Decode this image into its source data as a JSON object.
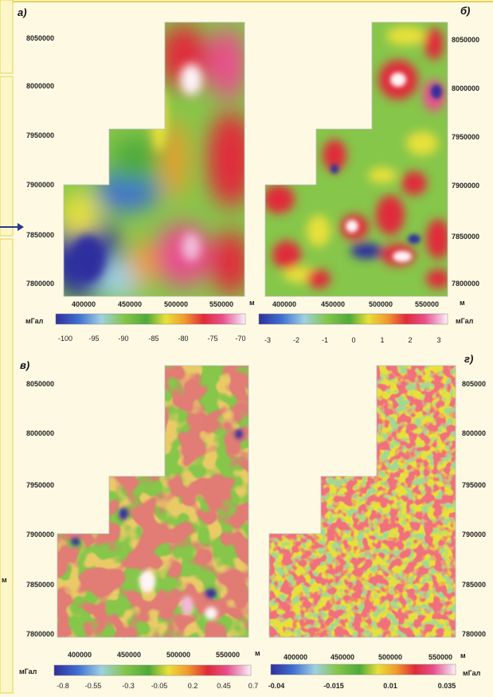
{
  "panels": [
    {
      "id": "a",
      "letter": "а)",
      "y_ticks": [
        "8050000",
        "8000000",
        "7950000",
        "7900000",
        "7850000",
        "7800000"
      ],
      "x_ticks": [
        "400000",
        "450000",
        "500000",
        "550000"
      ],
      "x_unit": "м",
      "colorbar_label": "мГал",
      "colorbar_ticks": [
        "-100",
        "-95",
        "-90",
        "-85",
        "-80",
        "-75",
        "-70"
      ]
    },
    {
      "id": "b",
      "letter": "б)",
      "y_ticks": [
        "8050000",
        "8000000",
        "7950000",
        "7900000",
        "7850000",
        "7800000"
      ],
      "x_ticks": [
        "400000",
        "450000",
        "500000",
        "550000"
      ],
      "x_unit": "м",
      "colorbar_label": "мГал",
      "colorbar_ticks": [
        "-3",
        "-2",
        "-1",
        "0",
        "1",
        "2",
        "3"
      ]
    },
    {
      "id": "v",
      "letter": "в)",
      "y_ticks": [
        "8050000",
        "8000000",
        "7950000",
        "7900000",
        "7850000",
        "7800000"
      ],
      "x_ticks": [
        "400000",
        "450000",
        "500000",
        "550000"
      ],
      "x_unit": "м",
      "colorbar_label": "мГал",
      "colorbar_ticks": [
        "-0.8",
        "-0.55",
        "-0.3",
        "-0.05",
        "0.2",
        "0.45",
        "0.7"
      ]
    },
    {
      "id": "g",
      "letter": "г)",
      "y_ticks": [
        "805000",
        "800000",
        "795000",
        "790000",
        "785000",
        "780000"
      ],
      "x_ticks": [
        "400000",
        "450000",
        "500000",
        "550000"
      ],
      "x_unit": "м",
      "colorbar_label": "мГал",
      "colorbar_ticks": [
        "-0.04",
        "-0.015",
        "0.01",
        "0.035"
      ]
    }
  ],
  "edge_labels": {
    "left_unit": "м"
  },
  "colors": {
    "background": "#fdf9e3",
    "frame": "#e6d24a",
    "arrow": "#2a3a8a",
    "palette": [
      "#2f2f9e",
      "#3f6fd1",
      "#9fd0e0",
      "#86c64a",
      "#4faa3a",
      "#e8e03a",
      "#f19a2c",
      "#e02a3a",
      "#e8508c",
      "#f1b9d8",
      "#fdf4f6"
    ]
  }
}
